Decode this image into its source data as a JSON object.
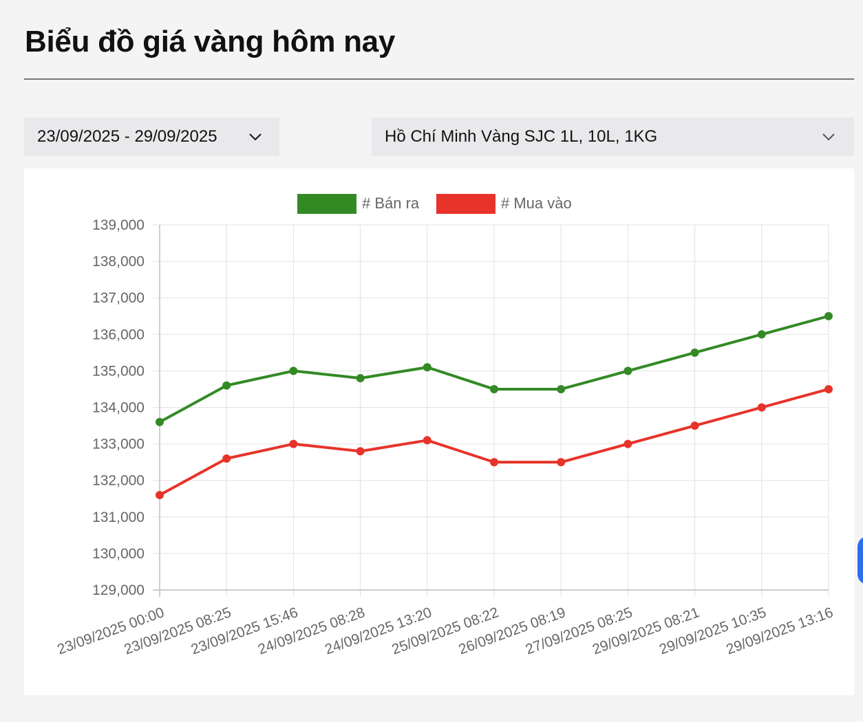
{
  "page": {
    "title": "Biểu đồ giá vàng hôm nay"
  },
  "filters": {
    "date_range": "23/09/2025 - 29/09/2025",
    "location": "Hồ Chí Minh Vàng SJC 1L, 10L, 1KG"
  },
  "icons": {
    "dropdown": "chevron-down-icon"
  },
  "chart_data": {
    "type": "line",
    "title": "",
    "xlabel": "",
    "ylabel": "",
    "ylim": [
      129000,
      139000
    ],
    "y_ticks": [
      "139,000",
      "138,000",
      "137,000",
      "136,000",
      "135,000",
      "134,000",
      "133,000",
      "132,000",
      "131,000",
      "130,000",
      "129,000"
    ],
    "grid": true,
    "legend_position": "top",
    "categories": [
      "23/09/2025 00:00",
      "23/09/2025 08:25",
      "23/09/2025 15:46",
      "24/09/2025 08:28",
      "24/09/2025 13:20",
      "25/09/2025 08:22",
      "26/09/2025 08:19",
      "27/09/2025 08:25",
      "29/09/2025 08:21",
      "29/09/2025 10:35",
      "29/09/2025 13:16"
    ],
    "series": [
      {
        "name": "# Bán ra",
        "color": "#338a25",
        "values": [
          133600,
          134600,
          135000,
          134800,
          135100,
          134500,
          134500,
          135000,
          135500,
          136000,
          136500
        ]
      },
      {
        "name": "# Mua vào",
        "color": "#e8332a",
        "values": [
          131600,
          132600,
          133000,
          132800,
          133100,
          132500,
          132500,
          133000,
          133500,
          134000,
          134500
        ]
      }
    ]
  }
}
